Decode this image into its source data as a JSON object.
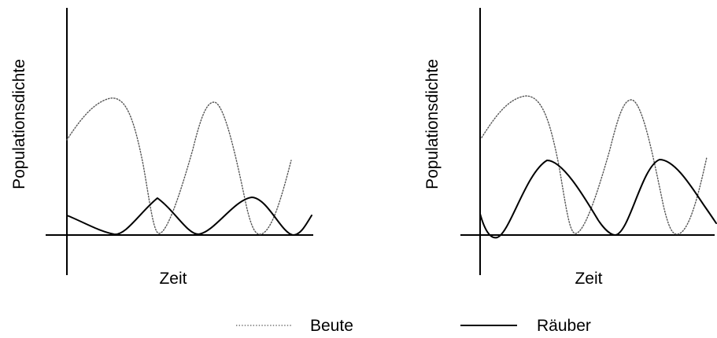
{
  "panels": [
    {
      "ylabel": "Populationsdichte",
      "xlabel": "Zeit"
    },
    {
      "ylabel": "Populationsdichte",
      "xlabel": "Zeit"
    }
  ],
  "legend": {
    "prey_label": "Beute",
    "predator_label": "Räuber"
  },
  "colors": {
    "prey": "#555555",
    "predator": "#000000"
  },
  "line_styles": {
    "prey": "dotted",
    "predator": "solid"
  }
}
